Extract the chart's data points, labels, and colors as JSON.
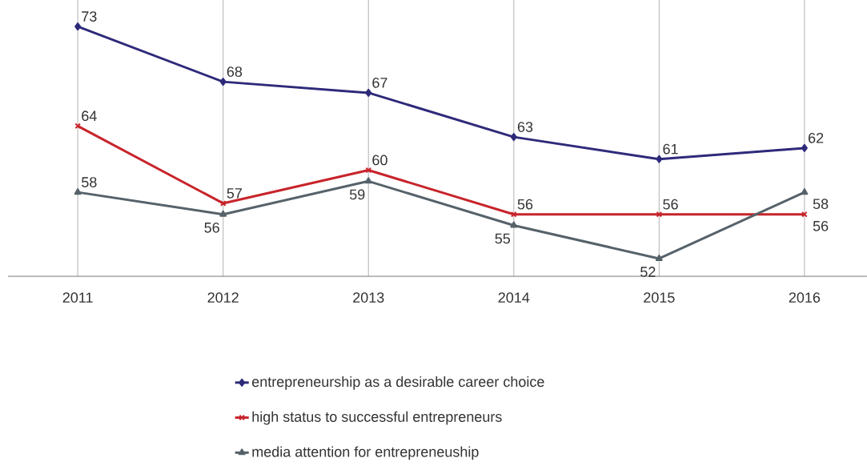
{
  "chart_data": {
    "type": "line",
    "categories": [
      "2011",
      "2012",
      "2013",
      "2014",
      "2015",
      "2016"
    ],
    "series": [
      {
        "name": "entrepreneurship as a desirable career choice",
        "color": "#2e2a7a",
        "marker": "diamond",
        "values": [
          73,
          68,
          67,
          63,
          61,
          62
        ]
      },
      {
        "name": "high status to successful entrepreneurs",
        "color": "#c8242b",
        "marker": "cross",
        "values": [
          64,
          57,
          60,
          56,
          56,
          56
        ]
      },
      {
        "name": "media attention for entrepreneuship",
        "color": "#56626a",
        "marker": "triangle",
        "values": [
          58,
          56,
          59,
          55,
          52,
          58
        ]
      }
    ],
    "ylim": [
      50.4,
      75.4
    ],
    "tick_labels": "x",
    "grid": "x",
    "legend": "bottom",
    "data_labels": true
  }
}
